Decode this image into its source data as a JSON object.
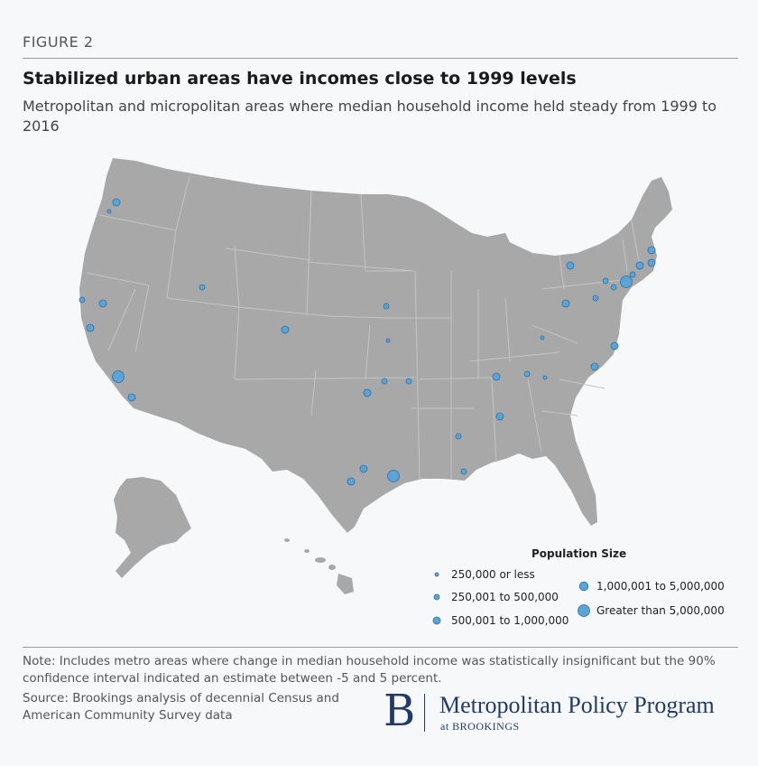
{
  "figure_label": "FIGURE 2",
  "title": "Stabilized urban areas have incomes close to 1999 levels",
  "subtitle": "Metropolitan and micropolitan areas where median household income held steady from 1999 to 2016",
  "legend": {
    "title": "Population Size",
    "items": [
      {
        "label": "250,000 or less",
        "size_class": 1
      },
      {
        "label": "250,001 to 500,000",
        "size_class": 2
      },
      {
        "label": "500,001 to 1,000,000",
        "size_class": 3
      },
      {
        "label": "1,000,001 to 5,000,000",
        "size_class": 4
      },
      {
        "label": "Greater than 5,000,000",
        "size_class": 5
      }
    ]
  },
  "colors": {
    "land": "#a8a8a8",
    "state_border": "#c4c4c4",
    "marker_fill": "#5ba4d9",
    "marker_stroke": "#2f6f9f",
    "brand": "#1f3a6b"
  },
  "note": "Note: Includes metro areas where change in median household income was statistically insignificant but the 90% confidence interval indicated an estimate between -5 and 5 percent.",
  "source": "Source: Brookings analysis of decennial Census and American Community Survey data",
  "logo": {
    "mark": "B",
    "name": "Metropolitan Policy Program",
    "sub": "at BROOKINGS"
  }
}
